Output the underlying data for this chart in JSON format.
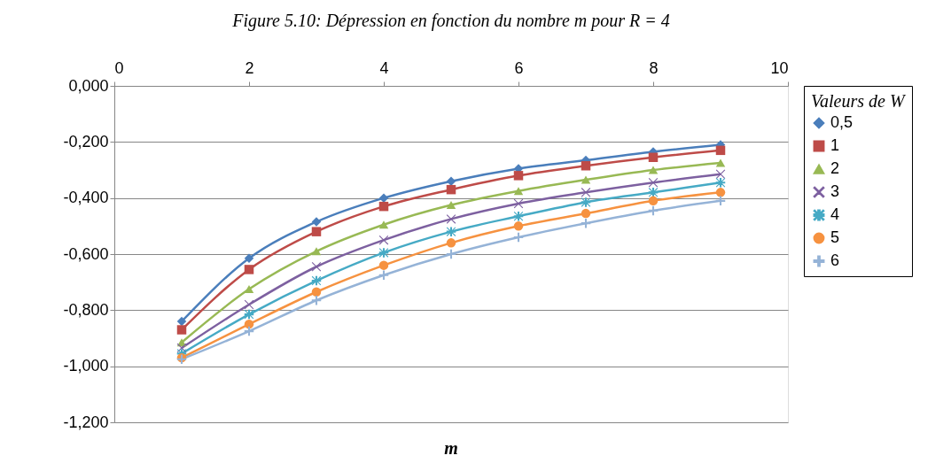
{
  "chart_data": {
    "type": "line",
    "title": "Figure 5.10: Dépression en fonction du nombre m pour R = 4",
    "xlabel": "m",
    "legend_title": "Valeurs de W",
    "x": [
      1,
      2,
      3,
      4,
      5,
      6,
      7,
      8,
      9
    ],
    "xlim": [
      0,
      10
    ],
    "xticks": [
      0,
      2,
      4,
      6,
      8,
      10
    ],
    "ylim": [
      -1.2,
      0
    ],
    "yticks": [
      {
        "value": -1.2,
        "label": "-1,200"
      },
      {
        "value": -1.0,
        "label": "-1,000"
      },
      {
        "value": -0.8,
        "label": "-0,800"
      },
      {
        "value": -0.6,
        "label": "-0,600"
      },
      {
        "value": -0.4,
        "label": "-0,400"
      },
      {
        "value": -0.2,
        "label": "-0,200"
      },
      {
        "value": 0,
        "label": "0,000"
      }
    ],
    "grid": "y",
    "legend": "right",
    "line_style": "solid",
    "series": [
      {
        "name": "0,5",
        "color": "#4a7ebb",
        "marker": "diamond",
        "values": [
          -0.84,
          -0.615,
          -0.485,
          -0.4,
          -0.34,
          -0.295,
          -0.265,
          -0.235,
          -0.21
        ]
      },
      {
        "name": "1",
        "color": "#be4b48",
        "marker": "square",
        "values": [
          -0.87,
          -0.655,
          -0.52,
          -0.43,
          -0.37,
          -0.32,
          -0.285,
          -0.255,
          -0.23
        ]
      },
      {
        "name": "2",
        "color": "#98b954",
        "marker": "triangle",
        "values": [
          -0.915,
          -0.725,
          -0.59,
          -0.495,
          -0.425,
          -0.375,
          -0.335,
          -0.3,
          -0.275
        ]
      },
      {
        "name": "3",
        "color": "#7d60a0",
        "marker": "cross",
        "values": [
          -0.935,
          -0.78,
          -0.645,
          -0.55,
          -0.475,
          -0.42,
          -0.38,
          -0.345,
          -0.315
        ]
      },
      {
        "name": "4",
        "color": "#46aac5",
        "marker": "star",
        "values": [
          -0.955,
          -0.815,
          -0.695,
          -0.595,
          -0.52,
          -0.465,
          -0.415,
          -0.38,
          -0.345
        ]
      },
      {
        "name": "5",
        "color": "#f69240",
        "marker": "circle",
        "values": [
          -0.97,
          -0.85,
          -0.735,
          -0.64,
          -0.56,
          -0.5,
          -0.455,
          -0.41,
          -0.38
        ]
      },
      {
        "name": "6",
        "color": "#95b3d7",
        "marker": "plus",
        "values": [
          -0.975,
          -0.875,
          -0.765,
          -0.675,
          -0.6,
          -0.54,
          -0.49,
          -0.445,
          -0.41
        ]
      }
    ]
  }
}
